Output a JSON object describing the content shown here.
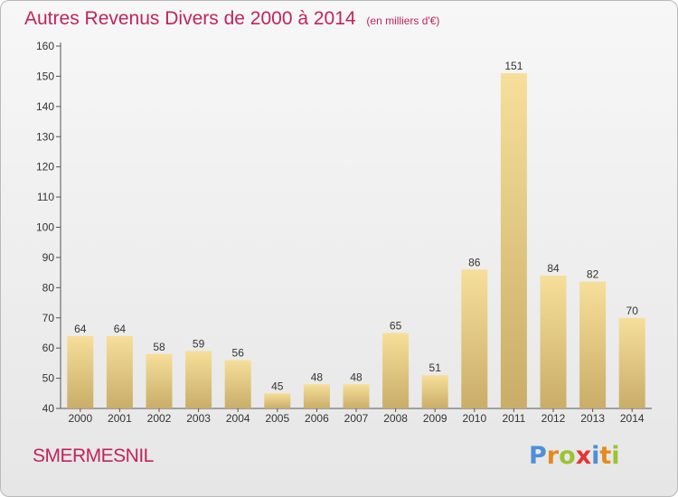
{
  "header": {
    "title": "Autres Revenus Divers de 2000 à 2014",
    "subtitle": "(en milliers d'€)"
  },
  "footer": {
    "commune": "SMERMESNIL",
    "logo": {
      "letters": [
        "P",
        "r",
        "o",
        "x",
        "i",
        "t",
        "i"
      ],
      "colors": [
        "#4f8fd6",
        "#e58a1f",
        "#9ac431",
        "#e3362f",
        "#4f8fd6",
        "#e58a1f",
        "#9ac431"
      ]
    }
  },
  "chart_data": {
    "type": "bar",
    "title": "Autres Revenus Divers de 2000 à 2014",
    "subtitle": "(en milliers d'€)",
    "categories": [
      "2000",
      "2001",
      "2002",
      "2003",
      "2004",
      "2005",
      "2006",
      "2007",
      "2008",
      "2009",
      "2010",
      "2011",
      "2012",
      "2013",
      "2014"
    ],
    "values": [
      64,
      64,
      58,
      59,
      56,
      45,
      48,
      48,
      65,
      51,
      86,
      151,
      84,
      82,
      70
    ],
    "ylim": [
      40,
      160
    ],
    "yticks": [
      40,
      50,
      60,
      70,
      80,
      90,
      100,
      110,
      120,
      130,
      140,
      150,
      160
    ],
    "grid": false,
    "colors": {
      "bar_light": "#f6df9a",
      "bar_dark": "#c9ad68",
      "axis": "#555555",
      "text": "#333333"
    }
  }
}
